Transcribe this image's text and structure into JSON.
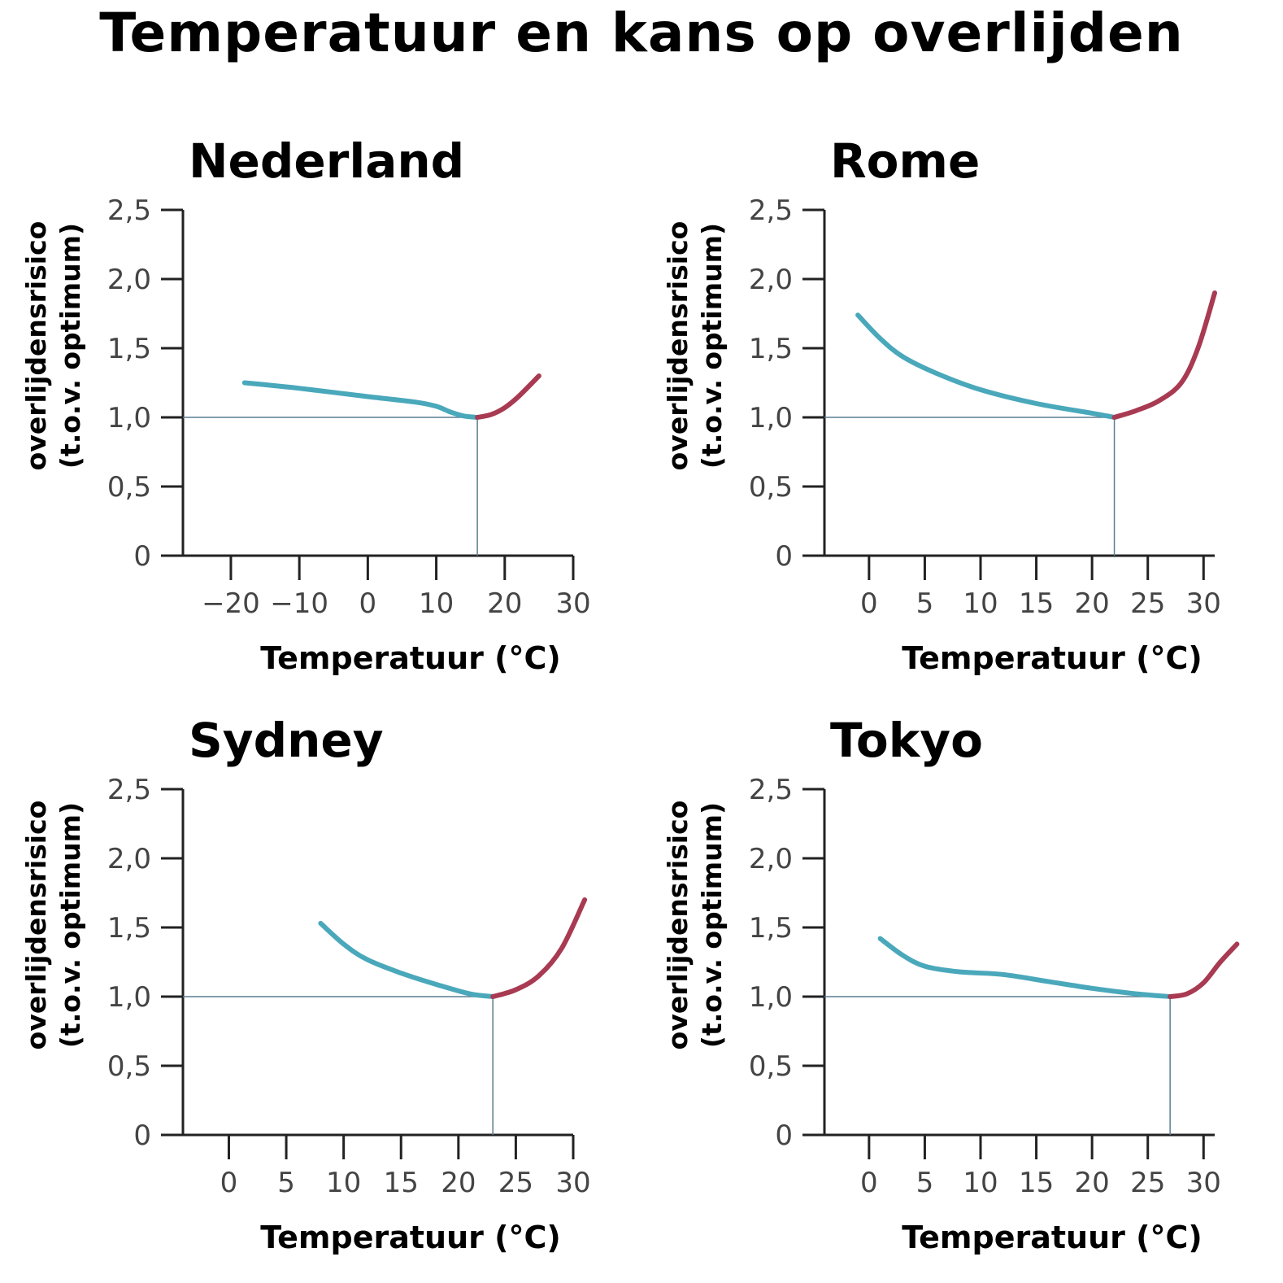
{
  "title": "Temperatuur en kans op overlijden",
  "colors": {
    "cold": "#4aa8bb",
    "warm": "#a83a52",
    "axis": "#222222",
    "ref": "#5b7d93"
  },
  "chart_data": [
    {
      "type": "line",
      "title": "Nederland",
      "xlabel": "Temperatuur (°C)",
      "ylabel": [
        "overlijdensrisico",
        "(t.o.v. optimum)"
      ],
      "xlim": [
        -27,
        30
      ],
      "ylim": [
        0,
        2.5
      ],
      "xticks": [
        -20,
        -10,
        0,
        10,
        20,
        30
      ],
      "xtick_labels": [
        "−20",
        "−10",
        "0",
        "10",
        "20",
        "30"
      ],
      "yticks": [
        0,
        0.5,
        1.0,
        1.5,
        2.0,
        2.5
      ],
      "ytick_labels": [
        "0",
        "0,5",
        "1,0",
        "1,5",
        "2,0",
        "2,5"
      ],
      "optimum": 16,
      "series": [
        {
          "values": [
            [
              -18,
              1.25
            ],
            [
              -10,
              1.21
            ],
            [
              0,
              1.15
            ],
            [
              7,
              1.11
            ],
            [
              10,
              1.08
            ],
            [
              12,
              1.04
            ],
            [
              14,
              1.01
            ],
            [
              16,
              1.0
            ]
          ]
        },
        {
          "values": [
            [
              16,
              1.0
            ],
            [
              18,
              1.02
            ],
            [
              20,
              1.07
            ],
            [
              22,
              1.15
            ],
            [
              25,
              1.3
            ]
          ]
        }
      ]
    },
    {
      "type": "line",
      "title": "Rome",
      "xlabel": "Temperatuur (°C)",
      "ylabel": [
        "overlijdensrisico",
        "(t.o.v. optimum)"
      ],
      "xlim": [
        -4,
        31
      ],
      "ylim": [
        0,
        2.5
      ],
      "xticks": [
        0,
        5,
        10,
        15,
        20,
        25,
        30
      ],
      "xtick_labels": [
        "0",
        "5",
        "10",
        "15",
        "20",
        "25",
        "30"
      ],
      "yticks": [
        0,
        0.5,
        1.0,
        1.5,
        2.0,
        2.5
      ],
      "ytick_labels": [
        "0",
        "0,5",
        "1,0",
        "1,5",
        "2,0",
        "2,5"
      ],
      "optimum": 22,
      "series": [
        {
          "values": [
            [
              -1,
              1.74
            ],
            [
              1,
              1.57
            ],
            [
              3,
              1.44
            ],
            [
              6,
              1.32
            ],
            [
              10,
              1.2
            ],
            [
              15,
              1.1
            ],
            [
              20,
              1.03
            ],
            [
              22,
              1.0
            ]
          ]
        },
        {
          "values": [
            [
              22,
              1.0
            ],
            [
              24,
              1.05
            ],
            [
              26,
              1.12
            ],
            [
              28,
              1.25
            ],
            [
              29.5,
              1.5
            ],
            [
              31,
              1.9
            ]
          ]
        }
      ]
    },
    {
      "type": "line",
      "title": "Sydney",
      "xlabel": "Temperatuur (°C)",
      "ylabel": [
        "overlijdensrisico",
        "(t.o.v. optimum)"
      ],
      "xlim": [
        -4,
        30
      ],
      "ylim": [
        0,
        2.5
      ],
      "xticks": [
        0,
        5,
        10,
        15,
        20,
        25,
        30
      ],
      "xtick_labels": [
        "0",
        "5",
        "10",
        "15",
        "20",
        "25",
        "30"
      ],
      "yticks": [
        0,
        0.5,
        1.0,
        1.5,
        2.0,
        2.5
      ],
      "ytick_labels": [
        "0",
        "0,5",
        "1,0",
        "1,5",
        "2,0",
        "2,5"
      ],
      "optimum": 23,
      "series": [
        {
          "values": [
            [
              8,
              1.53
            ],
            [
              10,
              1.38
            ],
            [
              12,
              1.27
            ],
            [
              15,
              1.17
            ],
            [
              18,
              1.09
            ],
            [
              21,
              1.02
            ],
            [
              23,
              1.0
            ]
          ]
        },
        {
          "values": [
            [
              23,
              1.0
            ],
            [
              25,
              1.05
            ],
            [
              27,
              1.15
            ],
            [
              29,
              1.35
            ],
            [
              31,
              1.7
            ]
          ]
        }
      ]
    },
    {
      "type": "line",
      "title": "Tokyo",
      "xlabel": "Temperatuur (°C)",
      "ylabel": [
        "overlijdensrisico",
        "(t.o.v. optimum)"
      ],
      "xlim": [
        -4,
        31
      ],
      "ylim": [
        0,
        2.5
      ],
      "xticks": [
        0,
        5,
        10,
        15,
        20,
        25,
        30
      ],
      "xtick_labels": [
        "0",
        "5",
        "10",
        "15",
        "20",
        "25",
        "30"
      ],
      "yticks": [
        0,
        0.5,
        1.0,
        1.5,
        2.0,
        2.5
      ],
      "ytick_labels": [
        "0",
        "0,5",
        "1,0",
        "1,5",
        "2,0",
        "2,5"
      ],
      "optimum": 27,
      "series": [
        {
          "values": [
            [
              1,
              1.42
            ],
            [
              3,
              1.3
            ],
            [
              5,
              1.22
            ],
            [
              8,
              1.18
            ],
            [
              12,
              1.16
            ],
            [
              16,
              1.11
            ],
            [
              20,
              1.06
            ],
            [
              24,
              1.02
            ],
            [
              27,
              1.0
            ]
          ]
        },
        {
          "values": [
            [
              27,
              1.0
            ],
            [
              28.5,
              1.02
            ],
            [
              30,
              1.1
            ],
            [
              31.5,
              1.25
            ],
            [
              33,
              1.38
            ]
          ]
        }
      ]
    }
  ]
}
